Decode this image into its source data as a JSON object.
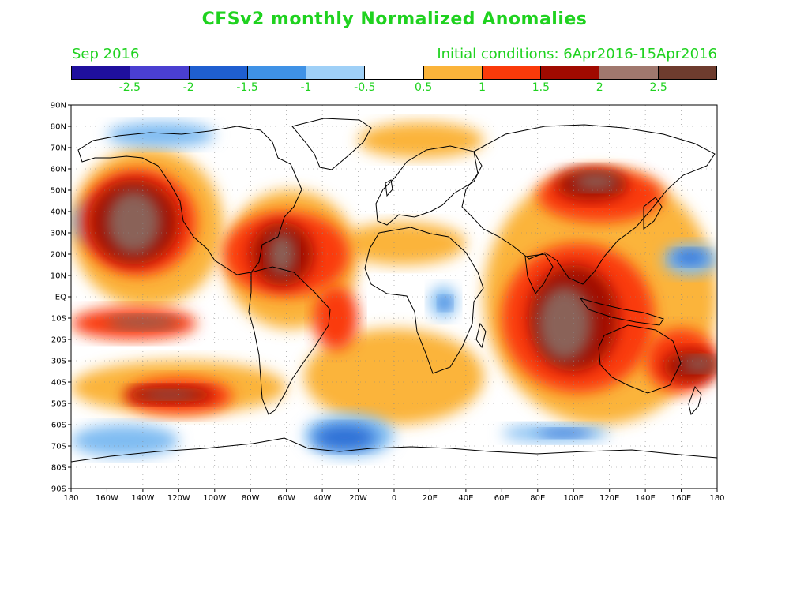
{
  "title": "CFSv2 monthly Normalized Anomalies",
  "subtitle_left": "Sep 2016",
  "subtitle_right": "Initial conditions: 6Apr2016-15Apr2016",
  "colorbar": {
    "colors": [
      "#1f0f9e",
      "#4a3fd1",
      "#1f5fd0",
      "#3f92e6",
      "#9fd0f7",
      "#ffffff",
      "#fbb43a",
      "#fa3a0a",
      "#a00a00",
      "#a0786e",
      "#6e3c2e"
    ],
    "labels": [
      "-2.5",
      "-2",
      "-1.5",
      "-1",
      "-0.5",
      "0.5",
      "1",
      "1.5",
      "2",
      "2.5"
    ]
  },
  "map": {
    "lat_labels": [
      "90N",
      "80N",
      "70N",
      "60N",
      "50N",
      "40N",
      "30N",
      "20N",
      "10N",
      "EQ",
      "10S",
      "20S",
      "30S",
      "40S",
      "50S",
      "60S",
      "70S",
      "80S",
      "90S"
    ],
    "lon_labels": [
      "180",
      "160W",
      "140W",
      "120W",
      "100W",
      "80W",
      "60W",
      "40W",
      "20W",
      "0",
      "20E",
      "40E",
      "60E",
      "80E",
      "100E",
      "120E",
      "140E",
      "160E",
      "180"
    ],
    "anomaly_regions": [
      {
        "level": 1,
        "lon": [
          -180,
          -95
        ],
        "lat": [
          -5,
          70
        ]
      },
      {
        "level": 1,
        "lon": [
          -95,
          -20
        ],
        "lat": [
          -15,
          50
        ]
      },
      {
        "level": 1,
        "lon": [
          50,
          180
        ],
        "lat": [
          -60,
          60
        ]
      },
      {
        "level": 1,
        "lon": [
          -180,
          -60
        ],
        "lat": [
          -55,
          -30
        ]
      },
      {
        "level": 1,
        "lon": [
          -50,
          50
        ],
        "lat": [
          -60,
          -15
        ]
      },
      {
        "level": 1,
        "lon": [
          -30,
          40
        ],
        "lat": [
          15,
          35
        ]
      },
      {
        "level": 1,
        "lon": [
          -20,
          50
        ],
        "lat": [
          65,
          82
        ]
      },
      {
        "level": 2,
        "lon": [
          -175,
          -110
        ],
        "lat": [
          10,
          60
        ]
      },
      {
        "level": 2,
        "lon": [
          -180,
          -110
        ],
        "lat": [
          -20,
          -5
        ]
      },
      {
        "level": 2,
        "lon": [
          -95,
          -25
        ],
        "lat": [
          0,
          40
        ]
      },
      {
        "level": 2,
        "lon": [
          60,
          145
        ],
        "lat": [
          -45,
          25
        ]
      },
      {
        "level": 2,
        "lon": [
          80,
          150
        ],
        "lat": [
          35,
          60
        ]
      },
      {
        "level": 2,
        "lon": [
          -150,
          -90
        ],
        "lat": [
          -55,
          -38
        ]
      },
      {
        "level": 2,
        "lon": [
          140,
          180
        ],
        "lat": [
          -45,
          -15
        ]
      },
      {
        "level": 2,
        "lon": [
          -45,
          -20
        ],
        "lat": [
          -25,
          5
        ]
      },
      {
        "level": 3,
        "lon": [
          -170,
          -120
        ],
        "lat": [
          15,
          55
        ]
      },
      {
        "level": 3,
        "lon": [
          -80,
          -45
        ],
        "lat": [
          5,
          35
        ]
      },
      {
        "level": 3,
        "lon": [
          75,
          125
        ],
        "lat": [
          -35,
          15
        ]
      },
      {
        "level": 3,
        "lon": [
          -150,
          -100
        ],
        "lat": [
          -50,
          -42
        ]
      },
      {
        "level": 3,
        "lon": [
          90,
          130
        ],
        "lat": [
          45,
          60
        ]
      },
      {
        "level": 3,
        "lon": [
          150,
          180
        ],
        "lat": [
          -40,
          -25
        ]
      },
      {
        "level": 4,
        "lon": [
          -160,
          -130
        ],
        "lat": [
          20,
          50
        ]
      },
      {
        "level": 4,
        "lon": [
          -70,
          -55
        ],
        "lat": [
          10,
          30
        ]
      },
      {
        "level": 4,
        "lon": [
          80,
          110
        ],
        "lat": [
          -30,
          5
        ]
      },
      {
        "level": 4,
        "lon": [
          -140,
          -110
        ],
        "lat": [
          -48,
          -44
        ]
      },
      {
        "level": 4,
        "lon": [
          -160,
          -120
        ],
        "lat": [
          -15,
          -9
        ]
      },
      {
        "level": 4,
        "lon": [
          100,
          125
        ],
        "lat": [
          50,
          58
        ]
      },
      {
        "level": 4,
        "lon": [
          160,
          180
        ],
        "lat": [
          -35,
          -28
        ]
      },
      {
        "level": -1,
        "lon": [
          -180,
          -150
        ],
        "lat": [
          25,
          45
        ]
      },
      {
        "level": -1,
        "lon": [
          -180,
          -120
        ],
        "lat": [
          -75,
          -60
        ]
      },
      {
        "level": -1,
        "lon": [
          -50,
          0
        ],
        "lat": [
          -75,
          -55
        ]
      },
      {
        "level": -1,
        "lon": [
          -160,
          -100
        ],
        "lat": [
          70,
          82
        ]
      },
      {
        "level": -1,
        "lon": [
          150,
          180
        ],
        "lat": [
          10,
          25
        ]
      },
      {
        "level": -1,
        "lon": [
          60,
          120
        ],
        "lat": [
          -68,
          -60
        ]
      },
      {
        "level": -1,
        "lon": [
          20,
          35
        ],
        "lat": [
          -10,
          5
        ]
      },
      {
        "level": -2,
        "lon": [
          -45,
          -10
        ],
        "lat": [
          -72,
          -60
        ]
      },
      {
        "level": -2,
        "lon": [
          155,
          175
        ],
        "lat": [
          15,
          22
        ]
      },
      {
        "level": -2,
        "lon": [
          80,
          110
        ],
        "lat": [
          -66,
          -62
        ]
      },
      {
        "level": -2,
        "lon": [
          25,
          32
        ],
        "lat": [
          -6,
          0
        ]
      }
    ]
  }
}
